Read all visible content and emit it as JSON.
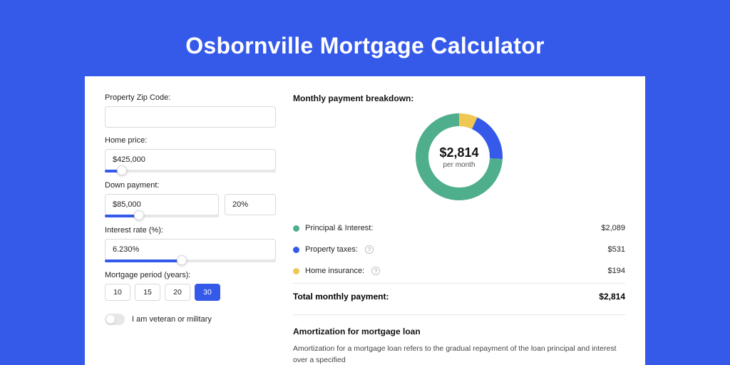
{
  "hero": {
    "title": "Osbornville Mortgage Calculator"
  },
  "colors": {
    "page_bg": "#355AEA",
    "shadow_bg": "#2E4FCC",
    "card_bg": "#ffffff",
    "accent": "#355AEA",
    "border": "#d9d9de",
    "rail": "#e7e7ea",
    "text": "#222222",
    "donut_green": "#4FAF8C",
    "donut_blue": "#355AEA",
    "donut_yellow": "#EFC752"
  },
  "form": {
    "zip": {
      "label": "Property Zip Code:",
      "value": ""
    },
    "price": {
      "label": "Home price:",
      "value": "$425,000",
      "slider_pct": 10
    },
    "down": {
      "label": "Down payment:",
      "amount": "$85,000",
      "pct": "20%",
      "slider_pct": 30
    },
    "rate": {
      "label": "Interest rate (%):",
      "value": "6.230%",
      "slider_pct": 45
    },
    "period": {
      "label": "Mortgage period (years):",
      "options": [
        "10",
        "15",
        "20",
        "30"
      ],
      "active": "30"
    },
    "veteran": {
      "label": "I am veteran or military",
      "on": false
    }
  },
  "breakdown": {
    "title": "Monthly payment breakdown:",
    "center_value": "$2,814",
    "center_sub": "per month",
    "items": [
      {
        "label": "Principal & Interest:",
        "value": "$2,089",
        "color": "#4FAF8C",
        "pct": 74.2,
        "help": false
      },
      {
        "label": "Property taxes:",
        "value": "$531",
        "color": "#355AEA",
        "pct": 18.9,
        "help": true
      },
      {
        "label": "Home insurance:",
        "value": "$194",
        "color": "#EFC752",
        "pct": 6.9,
        "help": true
      }
    ],
    "total": {
      "label": "Total monthly payment:",
      "value": "$2,814"
    },
    "donut": {
      "stroke_width": 18,
      "radius": 52,
      "size": 122
    }
  },
  "amort": {
    "title": "Amortization for mortgage loan",
    "text": "Amortization for a mortgage loan refers to the gradual repayment of the loan principal and interest over a specified"
  }
}
